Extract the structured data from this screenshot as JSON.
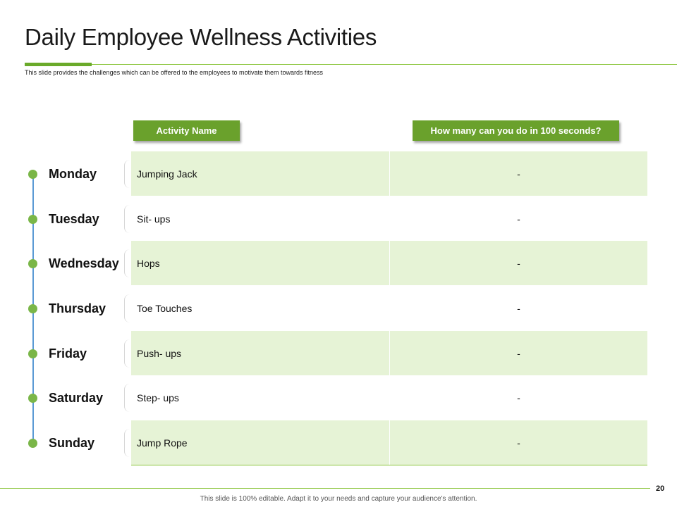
{
  "header": {
    "title": "Daily Employee Wellness Activities",
    "subtitle": "This slide provides the challenges which can be offered to the employees to motivate them towards fitness"
  },
  "table": {
    "headers": {
      "activity": "Activity Name",
      "count": "How many can you do in 100 seconds?"
    },
    "rows": [
      {
        "day": "Monday",
        "activity": "Jumping Jack",
        "count": "-"
      },
      {
        "day": "Tuesday",
        "activity": "Sit- ups",
        "count": "-"
      },
      {
        "day": "Wednesday",
        "activity": "Hops",
        "count": "-"
      },
      {
        "day": "Thursday",
        "activity": "Toe Touches",
        "count": "-"
      },
      {
        "day": "Friday",
        "activity": "Push- ups",
        "count": "-"
      },
      {
        "day": "Saturday",
        "activity": "Step- ups",
        "count": "-"
      },
      {
        "day": "Sunday",
        "activity": "Jump Rope",
        "count": "-"
      }
    ]
  },
  "footer": {
    "page_number": "20",
    "note": "This slide is 100% editable. Adapt it to your needs and capture your audience's attention."
  },
  "colors": {
    "accent_green": "#6aa12c",
    "row_shade": "#e6f3d6",
    "timeline_line": "#5b9bd5",
    "dot_green": "#7ab648"
  }
}
